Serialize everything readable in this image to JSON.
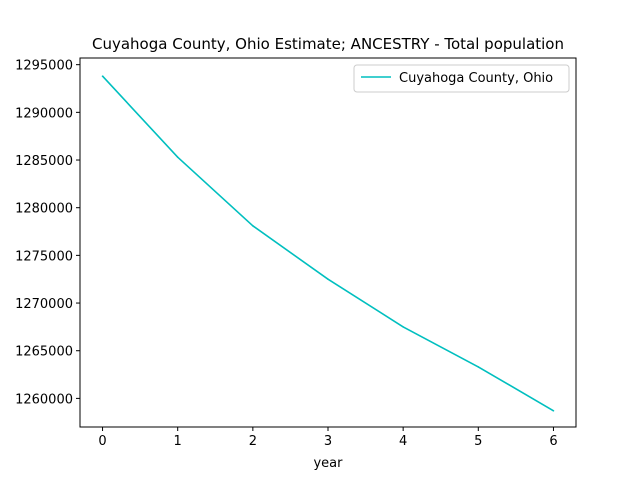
{
  "chart_data": {
    "type": "line",
    "title": "Cuyahoga County, Ohio Estimate; ANCESTRY - Total population",
    "xlabel": "year",
    "ylabel": "",
    "x": [
      0,
      1,
      2,
      3,
      4,
      5,
      6
    ],
    "xticks": [
      "0",
      "1",
      "2",
      "3",
      "4",
      "5",
      "6"
    ],
    "yticks": [
      "1260000",
      "1265000",
      "1270000",
      "1275000",
      "1280000",
      "1285000",
      "1290000",
      "1295000"
    ],
    "xlim": [
      -0.3,
      6.3
    ],
    "ylim": [
      1257000,
      1295700
    ],
    "grid": false,
    "legend_position": "top-right",
    "series": [
      {
        "name": "Cuyahoga County, Ohio",
        "color": "#00bfbf",
        "values": [
          1293800,
          1285300,
          1278100,
          1272500,
          1267500,
          1263300,
          1258700
        ]
      }
    ]
  }
}
